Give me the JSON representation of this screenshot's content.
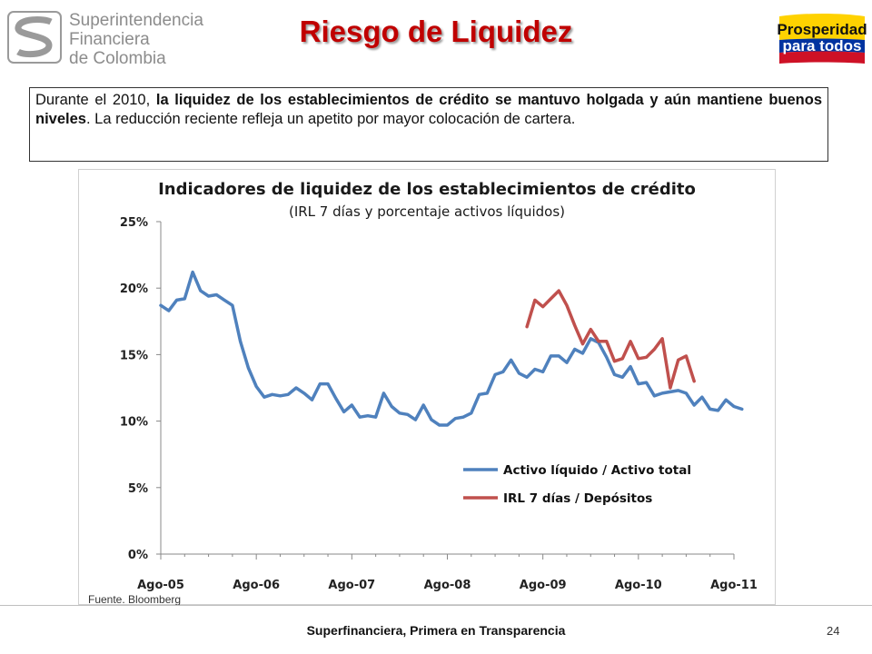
{
  "header": {
    "logo_lines": [
      "Superintendencia",
      "Financiera",
      "de Colombia"
    ],
    "title": "Riesgo de Liquidez",
    "right_logo_lines": [
      "Prosperidad",
      "para todos"
    ]
  },
  "intro": {
    "part1": "Durante el 2010, ",
    "part2_bold": "la liquidez de los establecimientos de crédito se mantuvo holgada y aún mantiene buenos niveles",
    "part3": ". La reducción reciente refleja un apetito por mayor colocación de cartera."
  },
  "chart_data": {
    "type": "line",
    "title": "Indicadores de liquidez de los establecimientos de crédito",
    "subtitle": "(IRL 7 días y porcentaje activos líquidos)",
    "xlabel": "",
    "ylabel": "",
    "x_tick_labels": [
      "Ago-05",
      "Ago-06",
      "Ago-07",
      "Ago-08",
      "Ago-09",
      "Ago-10",
      "Ago-11"
    ],
    "y_tick_labels": [
      "0%",
      "5%",
      "10%",
      "15%",
      "20%",
      "25%"
    ],
    "ylim": [
      0,
      25
    ],
    "legend_position": "lower-right",
    "grid": false,
    "series": [
      {
        "name": "Activo líquido / Activo total",
        "color": "#4f81bd",
        "start": "Ago-05",
        "values": [
          18.7,
          18.3,
          19.1,
          19.2,
          21.2,
          19.8,
          19.4,
          19.5,
          19.1,
          18.7,
          16.0,
          14.0,
          12.6,
          11.8,
          12.0,
          11.9,
          12.0,
          12.5,
          12.1,
          11.6,
          12.8,
          12.8,
          11.7,
          10.7,
          11.2,
          10.3,
          10.4,
          10.3,
          12.1,
          11.1,
          10.6,
          10.5,
          10.1,
          11.2,
          10.1,
          9.7,
          9.7,
          10.2,
          10.3,
          10.6,
          12.0,
          12.1,
          13.5,
          13.7,
          14.6,
          13.6,
          13.3,
          13.9,
          13.7,
          14.9,
          14.9,
          14.4,
          15.4,
          15.1,
          16.2,
          15.9,
          14.8,
          13.5,
          13.3,
          14.1,
          12.8,
          12.9,
          11.9,
          12.1,
          12.2,
          12.3,
          12.1,
          11.2,
          11.8,
          10.9,
          10.8,
          11.6,
          11.1,
          10.9
        ]
      },
      {
        "name": "IRL 7 días  / Depósitos",
        "color": "#c0504d",
        "start": "Jun-09",
        "values": [
          17.1,
          19.1,
          18.6,
          19.2,
          19.8,
          18.7,
          17.2,
          15.8,
          16.9,
          16.0,
          16.0,
          14.5,
          14.7,
          16.0,
          14.7,
          14.8,
          15.4,
          16.2,
          12.5,
          14.6,
          14.9,
          13.0
        ]
      }
    ]
  },
  "source": "Fuente. Bloomberg",
  "footer": {
    "text": "Superfinanciera, Primera en Transparencia",
    "page_number": "24"
  }
}
